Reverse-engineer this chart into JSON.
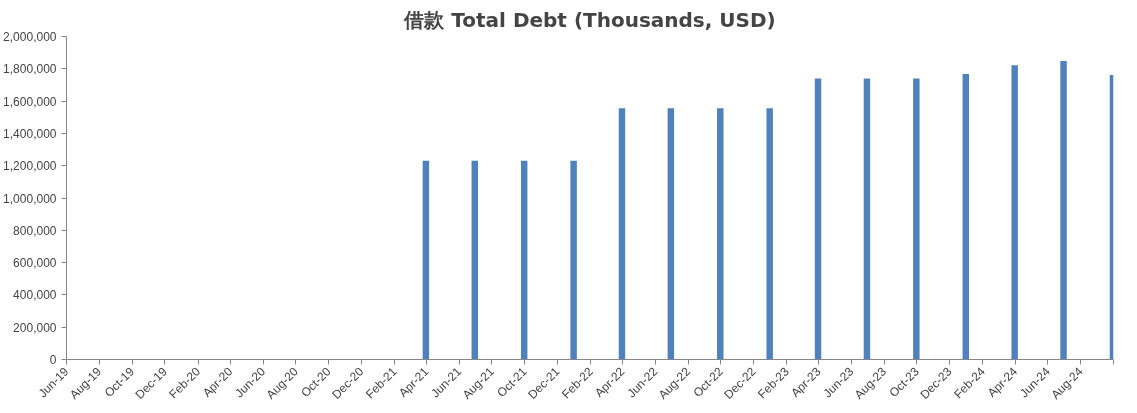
{
  "chart_data": {
    "type": "bar",
    "title": "借款 Total Debt (Thousands, USD)",
    "x": [
      "2021-03-31",
      "2021-06-30",
      "2021-09-30",
      "2021-12-31",
      "2022-03-31",
      "2022-06-30",
      "2022-09-30",
      "2022-12-31",
      "2023-03-31",
      "2023-06-30",
      "2023-09-30",
      "2023-12-31",
      "2024-03-31",
      "2024-06-30",
      "2024-09-30"
    ],
    "values": [
      1230000,
      1230000,
      1230000,
      1230000,
      1555000,
      1555000,
      1555000,
      1555000,
      1740000,
      1740000,
      1740000,
      1768000,
      1822000,
      1849000,
      1762000
    ],
    "color": "#4f81bd",
    "xlim": [
      "2019-06-01",
      "2024-10-01"
    ],
    "xticks": [
      {
        "value": "2019-06-01",
        "label": "Jun-19"
      },
      {
        "value": "2019-08-01",
        "label": "Aug-19"
      },
      {
        "value": "2019-10-01",
        "label": "Oct-19"
      },
      {
        "value": "2019-12-01",
        "label": "Dec-19"
      },
      {
        "value": "2020-02-01",
        "label": "Feb-20"
      },
      {
        "value": "2020-04-01",
        "label": "Apr-20"
      },
      {
        "value": "2020-06-01",
        "label": "Jun-20"
      },
      {
        "value": "2020-08-01",
        "label": "Aug-20"
      },
      {
        "value": "2020-10-01",
        "label": "Oct-20"
      },
      {
        "value": "2020-12-01",
        "label": "Dec-20"
      },
      {
        "value": "2021-02-01",
        "label": "Feb-21"
      },
      {
        "value": "2021-04-01",
        "label": "Apr-21"
      },
      {
        "value": "2021-06-01",
        "label": "Jun-21"
      },
      {
        "value": "2021-08-01",
        "label": "Aug-21"
      },
      {
        "value": "2021-10-01",
        "label": "Oct-21"
      },
      {
        "value": "2021-12-01",
        "label": "Dec-21"
      },
      {
        "value": "2022-02-01",
        "label": "Feb-22"
      },
      {
        "value": "2022-04-01",
        "label": "Apr-22"
      },
      {
        "value": "2022-06-01",
        "label": "Jun-22"
      },
      {
        "value": "2022-08-01",
        "label": "Aug-22"
      },
      {
        "value": "2022-10-01",
        "label": "Oct-22"
      },
      {
        "value": "2022-12-01",
        "label": "Dec-22"
      },
      {
        "value": "2023-02-01",
        "label": "Feb-23"
      },
      {
        "value": "2023-04-01",
        "label": "Apr-23"
      },
      {
        "value": "2023-06-01",
        "label": "Jun-23"
      },
      {
        "value": "2023-08-01",
        "label": "Aug-23"
      },
      {
        "value": "2023-10-01",
        "label": "Oct-23"
      },
      {
        "value": "2023-12-01",
        "label": "Dec-23"
      },
      {
        "value": "2024-02-01",
        "label": "Feb-24"
      },
      {
        "value": "2024-04-01",
        "label": "Apr-24"
      },
      {
        "value": "2024-06-01",
        "label": "Jun-24"
      },
      {
        "value": "2024-08-01",
        "label": "Aug-24"
      },
      {
        "value": "2024-10-01",
        "label": null
      }
    ],
    "ylim": [
      0,
      2000000
    ],
    "yticks": [
      {
        "value": 0,
        "label": "0"
      },
      {
        "value": 200000,
        "label": "200,000"
      },
      {
        "value": 400000,
        "label": "400,000"
      },
      {
        "value": 600000,
        "label": "600,000"
      },
      {
        "value": 800000,
        "label": "800,000"
      },
      {
        "value": 1000000,
        "label": "1,000,000"
      },
      {
        "value": 1200000,
        "label": "1,200,000"
      },
      {
        "value": 1400000,
        "label": "1,400,000"
      },
      {
        "value": 1600000,
        "label": "1,600,000"
      },
      {
        "value": 1800000,
        "label": "1,800,000"
      },
      {
        "value": 2000000,
        "label": "2,000,000"
      }
    ],
    "grid": false
  }
}
